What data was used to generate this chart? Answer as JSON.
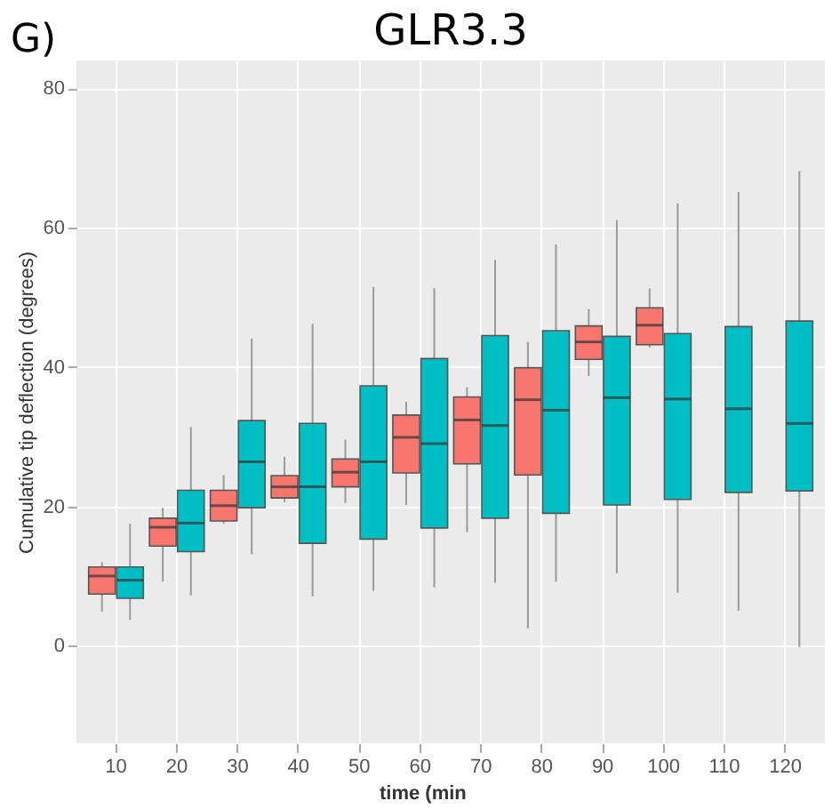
{
  "chart_data": {
    "type": "box",
    "title": "GLR3.3",
    "xlabel": "time (min",
    "ylabel": "Cumulative tip deflection (degrees)",
    "annotations": [
      "G)"
    ],
    "categories": [
      "10",
      "20",
      "30",
      "40",
      "50",
      "60",
      "70",
      "80",
      "90",
      "100",
      "110",
      "120"
    ],
    "ylim": [
      -14,
      84
    ],
    "yticks": [
      0,
      20,
      40,
      60,
      80
    ],
    "grid": true,
    "legend": false,
    "series": [
      {
        "color": "#f8766d",
        "boxes": [
          {
            "low": 4.9,
            "q1": 7.4,
            "median": 10.0,
            "q3": 11.3,
            "high": 12.0
          },
          {
            "low": 9.2,
            "q1": 14.3,
            "median": 17.0,
            "q3": 18.3,
            "high": 19.8
          },
          {
            "low": 17.5,
            "q1": 17.9,
            "median": 20.1,
            "q3": 22.3,
            "high": 24.5
          },
          {
            "low": 20.6,
            "q1": 21.2,
            "median": 22.8,
            "q3": 24.4,
            "high": 27.1
          },
          {
            "low": 20.5,
            "q1": 22.8,
            "median": 24.9,
            "q3": 26.8,
            "high": 29.6
          },
          {
            "low": 20.2,
            "q1": 24.8,
            "median": 29.9,
            "q3": 33.1,
            "high": 35.0
          },
          {
            "low": 16.3,
            "q1": 26.1,
            "median": 32.4,
            "q3": 35.7,
            "high": 37.1
          },
          {
            "low": 2.5,
            "q1": 24.5,
            "median": 35.3,
            "q3": 39.9,
            "high": 43.6
          },
          {
            "low": 38.7,
            "q1": 41.1,
            "median": 43.6,
            "q3": 45.9,
            "high": 48.3
          },
          {
            "low": 42.8,
            "q1": 43.2,
            "median": 46.0,
            "q3": 48.5,
            "high": 51.3
          },
          null,
          null
        ]
      },
      {
        "color": "#00bfc4",
        "boxes": [
          {
            "low": 3.7,
            "q1": 6.8,
            "median": 9.4,
            "q3": 11.3,
            "high": 17.5
          },
          {
            "low": 7.2,
            "q1": 13.5,
            "median": 17.6,
            "q3": 22.3,
            "high": 31.4
          },
          {
            "low": 13.1,
            "q1": 19.8,
            "median": 26.4,
            "q3": 32.3,
            "high": 44.1
          },
          {
            "low": 7.1,
            "q1": 14.7,
            "median": 22.8,
            "q3": 31.9,
            "high": 46.2
          },
          {
            "low": 7.9,
            "q1": 15.3,
            "median": 26.4,
            "q3": 37.3,
            "high": 51.5
          },
          {
            "low": 8.4,
            "q1": 16.9,
            "median": 29.0,
            "q3": 41.2,
            "high": 51.3
          },
          {
            "low": 9.0,
            "q1": 18.3,
            "median": 31.6,
            "q3": 44.5,
            "high": 55.4
          },
          {
            "low": 9.2,
            "q1": 19.0,
            "median": 33.8,
            "q3": 45.2,
            "high": 57.6
          },
          {
            "low": 10.4,
            "q1": 20.2,
            "median": 35.6,
            "q3": 44.4,
            "high": 61.1
          },
          {
            "low": 7.6,
            "q1": 21.0,
            "median": 35.4,
            "q3": 44.8,
            "high": 63.5
          },
          {
            "low": 5.0,
            "q1": 22.0,
            "median": 34.0,
            "q3": 45.8,
            "high": 65.1
          },
          {
            "low": -0.2,
            "q1": 22.2,
            "median": 31.9,
            "q3": 46.6,
            "high": 68.1
          }
        ]
      }
    ]
  }
}
